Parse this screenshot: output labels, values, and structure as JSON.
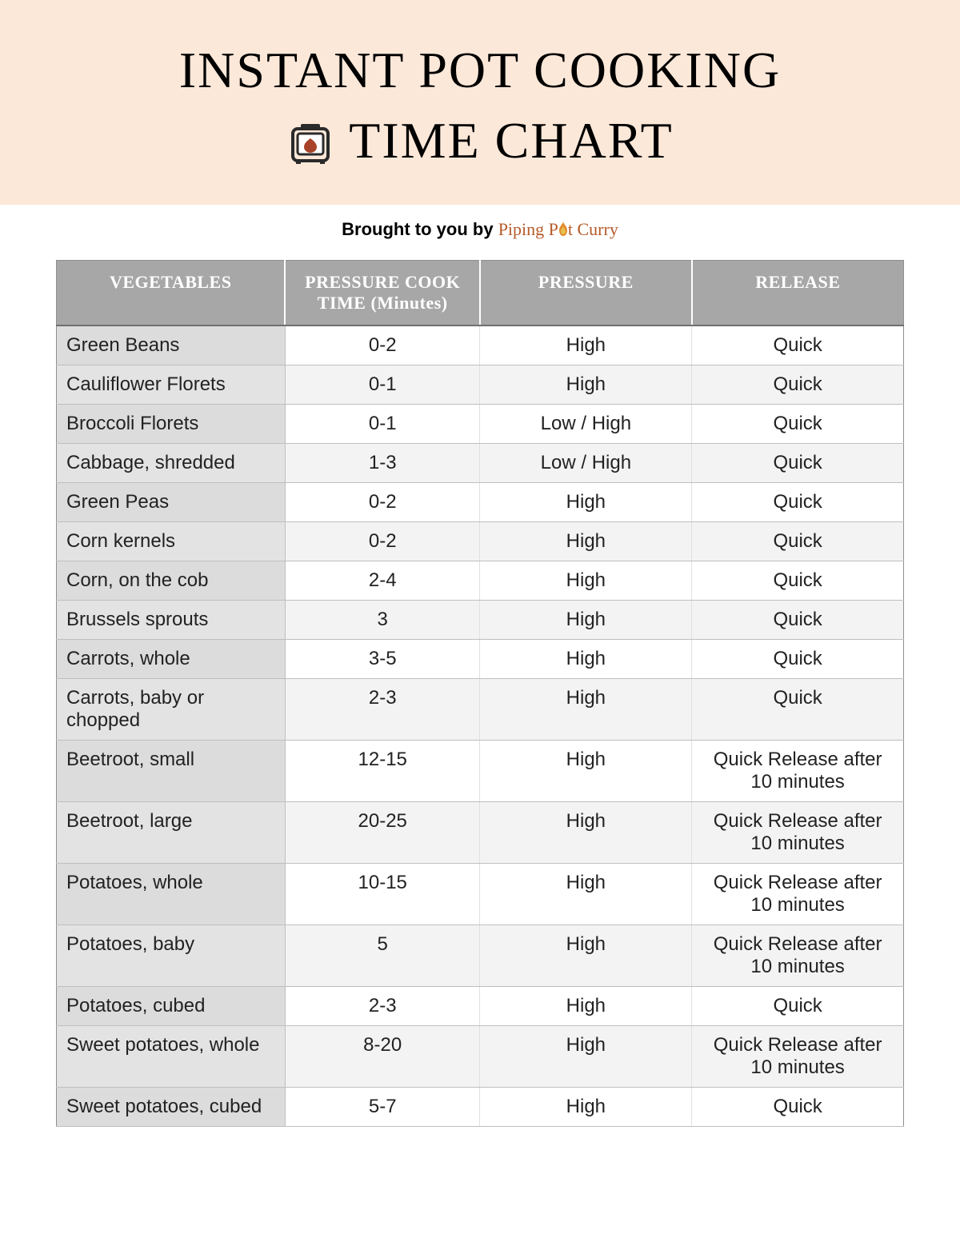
{
  "title": {
    "line1": "INSTANT POT COOKING",
    "line2": "TIME CHART"
  },
  "byline_prefix": "Brought to you by ",
  "brand_part1": "Piping P",
  "brand_part2": "t Curry",
  "icon": {
    "pot_stroke": "#2a2a2a",
    "heart_fill": "#a8432a",
    "flame_outer": "#e08a2e",
    "flame_inner": "#e8c04a"
  },
  "colors": {
    "header_band_bg": "#fce8d9",
    "thead_bg": "#a7a7a7",
    "thead_text": "#ffffff",
    "row_label_bg_odd": "#dcdcdc",
    "row_label_bg_even": "#e3e3e3",
    "row_data_bg_odd": "#ffffff",
    "row_data_bg_even": "#f3f3f3",
    "border": "#bfbfbf",
    "text": "#222222",
    "brand": "#b65a2a"
  },
  "table": {
    "columns": [
      "VEGETABLES",
      "PRESSURE COOK TIME (Minutes)",
      "PRESSURE",
      "RELEASE"
    ],
    "rows": [
      [
        "Green Beans",
        "0-2",
        "High",
        "Quick"
      ],
      [
        "Cauliflower Florets",
        "0-1",
        "High",
        "Quick"
      ],
      [
        "Broccoli Florets",
        "0-1",
        "Low / High",
        "Quick"
      ],
      [
        "Cabbage, shredded",
        "1-3",
        "Low / High",
        "Quick"
      ],
      [
        "Green Peas",
        "0-2",
        "High",
        "Quick"
      ],
      [
        "Corn kernels",
        "0-2",
        "High",
        "Quick"
      ],
      [
        "Corn, on the cob",
        "2-4",
        "High",
        "Quick"
      ],
      [
        "Brussels sprouts",
        "3",
        "High",
        "Quick"
      ],
      [
        "Carrots, whole",
        "3-5",
        "High",
        "Quick"
      ],
      [
        "Carrots, baby or chopped",
        "2-3",
        "High",
        "Quick"
      ],
      [
        "Beetroot, small",
        "12-15",
        "High",
        "Quick Release after 10 minutes"
      ],
      [
        "Beetroot, large",
        "20-25",
        "High",
        "Quick Release after 10 minutes"
      ],
      [
        "Potatoes, whole",
        "10-15",
        "High",
        "Quick Release after 10 minutes"
      ],
      [
        "Potatoes, baby",
        "5",
        "High",
        "Quick Release after 10 minutes"
      ],
      [
        "Potatoes, cubed",
        "2-3",
        "High",
        "Quick"
      ],
      [
        "Sweet potatoes, whole",
        "8-20",
        "High",
        "Quick Release after 10 minutes"
      ],
      [
        "Sweet potatoes, cubed",
        "5-7",
        "High",
        "Quick"
      ]
    ]
  }
}
